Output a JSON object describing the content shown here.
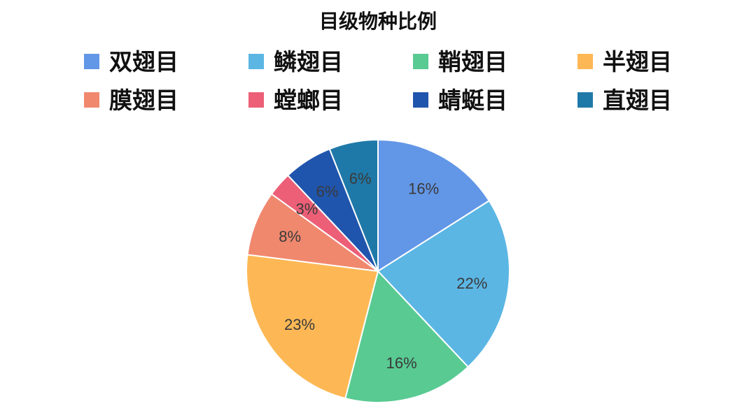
{
  "chart_data": {
    "type": "pie",
    "title": "目级物种比例",
    "legend_position": "top",
    "series": [
      {
        "label": "双翅目",
        "value": 16,
        "display": "16%",
        "color": "#6296e6"
      },
      {
        "label": "鳞翅目",
        "value": 22,
        "display": "22%",
        "color": "#5bb6e4"
      },
      {
        "label": "鞘翅目",
        "value": 16,
        "display": "16%",
        "color": "#58ca92"
      },
      {
        "label": "半翅目",
        "value": 23,
        "display": "23%",
        "color": "#fdb855"
      },
      {
        "label": "膜翅目",
        "value": 8,
        "display": "8%",
        "color": "#f0886e"
      },
      {
        "label": "螳螂目",
        "value": 3,
        "display": "3%",
        "color": "#ec5f77"
      },
      {
        "label": "蜻蜓目",
        "value": 6,
        "display": "6%",
        "color": "#2055ad"
      },
      {
        "label": "直翅目",
        "value": 6,
        "display": "6%",
        "color": "#1f79a8"
      }
    ]
  }
}
